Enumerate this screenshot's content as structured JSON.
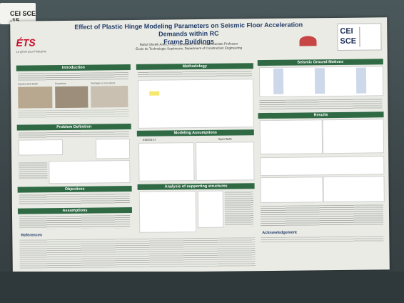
{
  "tag": {
    "line1": "",
    "code": "CEI SCE -15",
    "line3": ""
  },
  "poster": {
    "title_line1": "Effect of Plastic Hinge Modeling Parameters on Seismic Floor Acceleration Demands within RC",
    "title_line2": "Frame Buildings",
    "authors": "Rahul Sheikh Amiri, Ph.D. Candidate; Amir Ravi, Associate Professor",
    "affiliation": "École de Technologie Supérieure, Department of Construction Engineering",
    "logo_left": "ÉTS",
    "logo_left_sub": "Le génie pour l'industrie",
    "logo_right_top": "CEI",
    "logo_right_bottom": "SCE",
    "sections": {
      "introduction": "Introduction",
      "problem": "Problem Definition",
      "objectives": "Objectives",
      "assumptions": "Assumptions",
      "references": "References",
      "methodology": "Methodology",
      "modeling": "Modeling Assumptions",
      "analysis": "Analysis of supporting structures",
      "motions": "Seismic Ground Motions",
      "results": "Results",
      "acknowledgement": "Acknowledgement"
    },
    "labels": {
      "injuries": "Injuries and death",
      "downtime": "Downtime",
      "damage": "Damage to non-struct.",
      "asce": "ASCE41-17",
      "open": "Open Walls"
    }
  }
}
